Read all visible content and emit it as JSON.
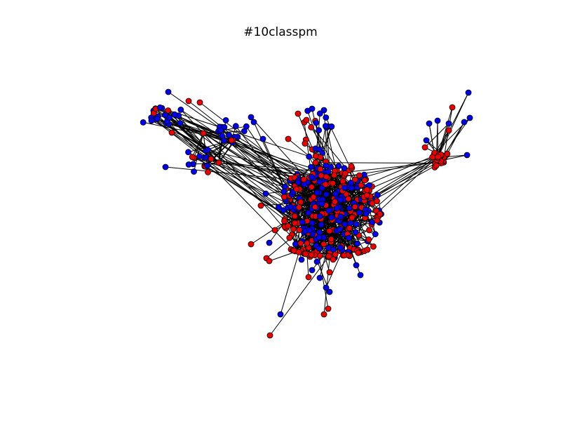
{
  "figure": {
    "title": "#10classpm"
  },
  "graph": {
    "node_colors": [
      "#0000ee",
      "#ee0000"
    ],
    "node_color_names": [
      "blue",
      "red"
    ],
    "edge_color": "#000000",
    "node_edge_color": "#000000",
    "clusters": [
      "upper-left",
      "upper-center",
      "right",
      "core",
      "bottom-tail"
    ]
  }
}
